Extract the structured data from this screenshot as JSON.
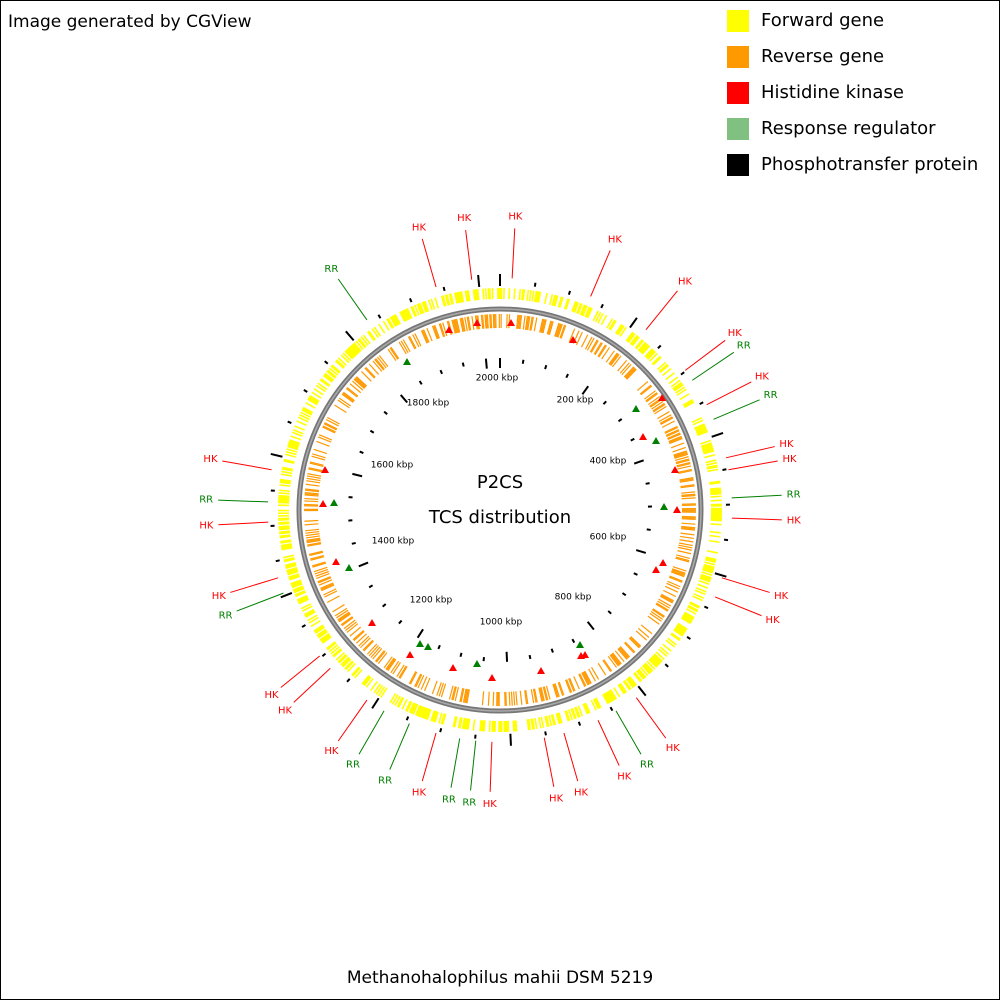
{
  "header": {
    "credit": "Image generated by CGView"
  },
  "legend": [
    {
      "label": "Forward gene",
      "color": "#ffff00"
    },
    {
      "label": "Reverse gene",
      "color": "#ff9900"
    },
    {
      "label": "Histidine kinase",
      "color": "#ff0000"
    },
    {
      "label": "Response regulator",
      "color": "#80c080"
    },
    {
      "label": "Phosphotransfer protein",
      "color": "#000000"
    }
  ],
  "center": {
    "title": "P2CS",
    "subtitle": "TCS distribution"
  },
  "scale_labels": [
    "2000 kbp",
    "200 kbp",
    "400 kbp",
    "600 kbp",
    "800 kbp",
    "1000 kbp",
    "1200 kbp",
    "1400 kbp",
    "1600 kbp",
    "1800 kbp"
  ],
  "features": [
    "RR",
    "HK",
    "HK",
    "HK",
    "HK",
    "HK",
    "HK",
    "RR",
    "HK",
    "RR",
    "HK",
    "HK",
    "RR",
    "HK",
    "HK",
    "HK",
    "HK",
    "RR",
    "HK",
    "HK",
    "HK",
    "HK",
    "RR",
    "RR",
    "HK",
    "RR",
    "RR",
    "HK",
    "HK",
    "HK",
    "RR",
    "HK",
    "HK",
    "RR",
    "HK"
  ],
  "footer": {
    "title": "Methanohalophilus mahii DSM 5219"
  }
}
